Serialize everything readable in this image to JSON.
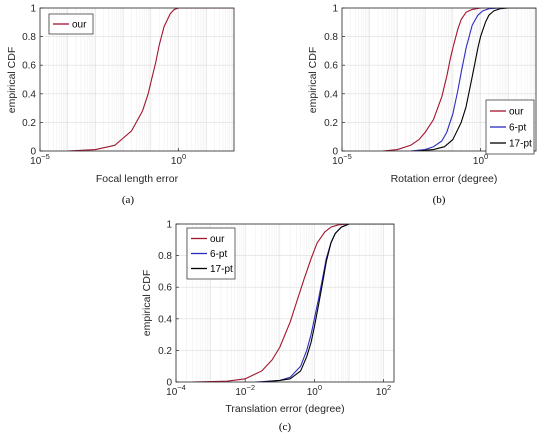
{
  "chart_data": [
    {
      "panel_label": "(a)",
      "type": "line",
      "xscale": "log",
      "xlim": [
        1e-05,
        100
      ],
      "ylim": [
        0,
        1
      ],
      "xticks": [
        "10^-5",
        "10^0"
      ],
      "yticks": [
        "0",
        "0.2",
        "0.4",
        "0.6",
        "0.8",
        "1"
      ],
      "xlabel": "Focal length error",
      "ylabel": "empirical CDF",
      "grid": true,
      "legend_position": "top-left",
      "series": [
        {
          "name": "our",
          "color": "#A2142F",
          "x": [
            0.0001,
            0.001,
            0.005,
            0.01,
            0.02,
            0.05,
            0.08,
            0.1,
            0.15,
            0.2,
            0.3,
            0.5,
            0.7,
            1.0,
            2,
            100
          ],
          "y": [
            0.0,
            0.01,
            0.04,
            0.09,
            0.14,
            0.28,
            0.4,
            0.48,
            0.62,
            0.74,
            0.87,
            0.96,
            0.99,
            1.0,
            1.0,
            1.0
          ]
        }
      ]
    },
    {
      "panel_label": "(b)",
      "type": "line",
      "xscale": "log",
      "xlim": [
        1e-05,
        100
      ],
      "ylim": [
        0,
        1
      ],
      "xticks": [
        "10^-5",
        "10^0"
      ],
      "yticks": [
        "0",
        "0.2",
        "0.4",
        "0.6",
        "0.8",
        "1"
      ],
      "xlabel": "Rotation error (degree)",
      "ylabel": "empirical CDF",
      "grid": true,
      "legend_position": "bottom-right",
      "series": [
        {
          "name": "our",
          "color": "#A2142F",
          "x": [
            0.0003,
            0.001,
            0.003,
            0.006,
            0.01,
            0.02,
            0.04,
            0.06,
            0.08,
            0.1,
            0.15,
            0.2,
            0.3,
            0.5,
            1,
            100
          ],
          "y": [
            0.0,
            0.01,
            0.04,
            0.08,
            0.13,
            0.22,
            0.38,
            0.52,
            0.64,
            0.72,
            0.85,
            0.92,
            0.97,
            0.99,
            1.0,
            1.0
          ]
        },
        {
          "name": "6-pt",
          "color": "#2B2BBF",
          "x": [
            0.003,
            0.01,
            0.02,
            0.04,
            0.06,
            0.1,
            0.15,
            0.2,
            0.3,
            0.5,
            0.8,
            1.2,
            2,
            5,
            100
          ],
          "y": [
            0.0,
            0.01,
            0.03,
            0.07,
            0.13,
            0.26,
            0.42,
            0.55,
            0.72,
            0.88,
            0.95,
            0.98,
            0.995,
            1.0,
            1.0
          ]
        },
        {
          "name": "17-pt",
          "color": "#000000",
          "x": [
            0.005,
            0.02,
            0.05,
            0.1,
            0.2,
            0.3,
            0.5,
            0.8,
            1.0,
            1.5,
            2,
            3,
            5,
            10,
            100
          ],
          "y": [
            0.0,
            0.01,
            0.03,
            0.08,
            0.2,
            0.31,
            0.52,
            0.72,
            0.8,
            0.9,
            0.95,
            0.98,
            0.995,
            1.0,
            1.0
          ]
        }
      ]
    },
    {
      "panel_label": "(c)",
      "type": "line",
      "xscale": "log",
      "xlim": [
        0.0001,
        200
      ],
      "ylim": [
        0,
        1
      ],
      "xticks": [
        "10^-4",
        "10^-2",
        "10^0",
        "10^2"
      ],
      "yticks": [
        "0",
        "0.2",
        "0.4",
        "0.6",
        "0.8",
        "1"
      ],
      "xlabel": "Translation error (degree)",
      "ylabel": "empirical CDF",
      "grid": true,
      "legend_position": "top-left",
      "series": [
        {
          "name": "our",
          "color": "#A2142F",
          "x": [
            0.0003,
            0.003,
            0.01,
            0.03,
            0.06,
            0.1,
            0.2,
            0.3,
            0.5,
            0.8,
            1.2,
            2,
            3,
            5,
            10,
            200
          ],
          "y": [
            0.0,
            0.005,
            0.02,
            0.07,
            0.14,
            0.22,
            0.38,
            0.5,
            0.65,
            0.78,
            0.88,
            0.95,
            0.98,
            0.995,
            1.0,
            1.0
          ]
        },
        {
          "name": "6-pt",
          "color": "#2B2BBF",
          "x": [
            0.02,
            0.1,
            0.2,
            0.4,
            0.6,
            0.8,
            1.0,
            1.3,
            1.7,
            2.2,
            3,
            4,
            6,
            10,
            200
          ],
          "y": [
            0.0,
            0.01,
            0.03,
            0.1,
            0.2,
            0.3,
            0.4,
            0.52,
            0.65,
            0.78,
            0.88,
            0.94,
            0.98,
            1.0,
            1.0
          ]
        },
        {
          "name": "17-pt",
          "color": "#000000",
          "x": [
            0.03,
            0.1,
            0.2,
            0.4,
            0.6,
            0.8,
            1.0,
            1.3,
            1.7,
            2.2,
            3,
            4,
            6,
            10,
            200
          ],
          "y": [
            0.0,
            0.01,
            0.02,
            0.07,
            0.16,
            0.25,
            0.35,
            0.48,
            0.62,
            0.76,
            0.88,
            0.94,
            0.98,
            1.0,
            1.0
          ]
        }
      ]
    }
  ]
}
